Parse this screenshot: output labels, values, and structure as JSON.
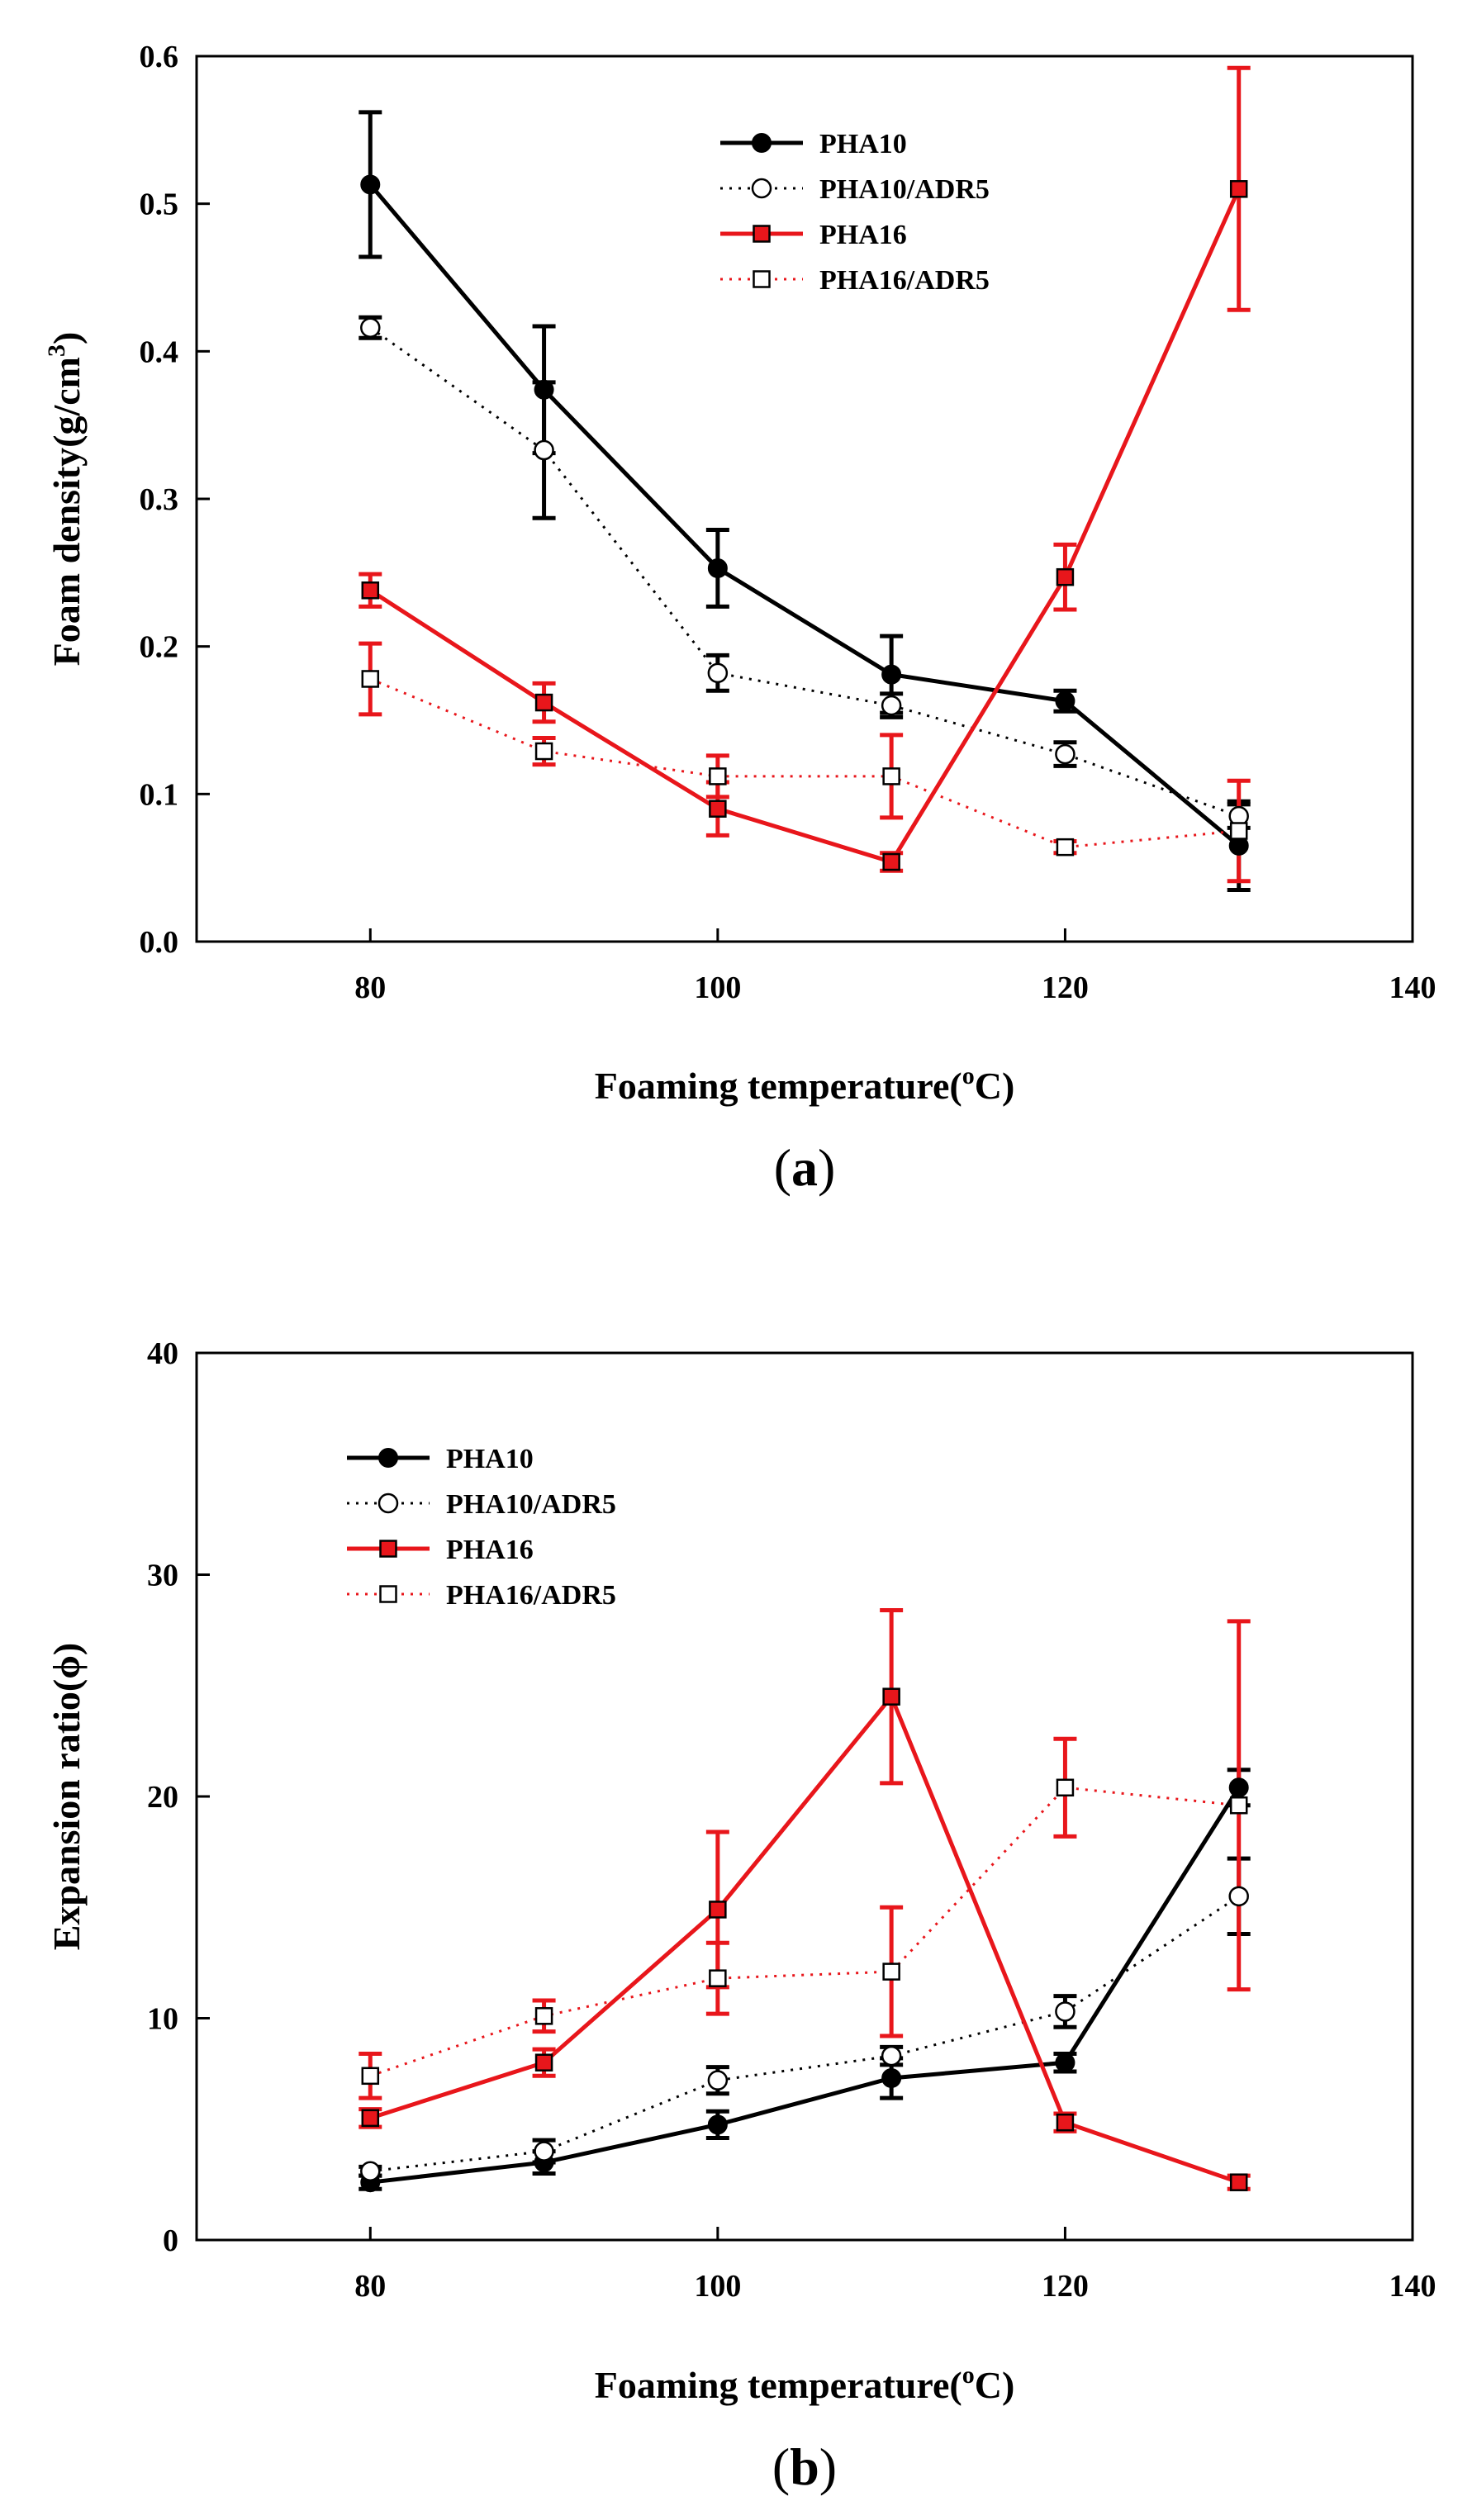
{
  "chart_data": [
    {
      "type": "line",
      "panel_label_parts": [
        "(",
        "a",
        ")"
      ],
      "xlabel_parts": [
        "Foaming temperature(",
        "o",
        "C)"
      ],
      "ylabel_parts": [
        "Foam density(g/cm",
        "3",
        ")"
      ],
      "xlim": [
        70,
        140
      ],
      "ylim": [
        0,
        0.6
      ],
      "x_ticks": [
        80,
        100,
        120,
        140
      ],
      "x_tick_labels": [
        "80",
        "100",
        "120",
        "140"
      ],
      "y_ticks": [
        0,
        0.1,
        0.2,
        0.3,
        0.4,
        0.5,
        0.6
      ],
      "y_tick_labels": [
        "0.0",
        "0.1",
        "0.2",
        "0.3",
        "0.4",
        "0.5",
        "0.6"
      ],
      "grid": false,
      "legend_position": "top-right",
      "x": [
        80,
        90,
        100,
        110,
        120,
        130
      ],
      "series": [
        {
          "name": "PHA10",
          "color": "#000000",
          "line": "solid",
          "marker": "filled-circle",
          "values": [
            0.513,
            0.374,
            0.253,
            0.181,
            0.163,
            0.065
          ],
          "errors": [
            0.049,
            0.043,
            0.026,
            0.026,
            0.007,
            0.03
          ]
        },
        {
          "name": "PHA10/ADR5",
          "color": "#000000",
          "line": "dotted",
          "marker": "open-circle",
          "values": [
            0.416,
            0.333,
            0.182,
            0.16,
            0.127,
            0.085
          ],
          "errors": [
            0.007,
            0.046,
            0.012,
            0.008,
            0.008,
            0.008
          ]
        },
        {
          "name": "PHA16",
          "color": "#e8161b",
          "line": "solid",
          "marker": "filled-square",
          "values": [
            0.238,
            0.162,
            0.09,
            0.054,
            0.247,
            0.51
          ],
          "errors": [
            0.011,
            0.013,
            0.018,
            0.006,
            0.022,
            0.082
          ]
        },
        {
          "name": "PHA16/ADR5",
          "color": "#e8161b",
          "line": "dotted",
          "marker": "open-square",
          "values": [
            0.178,
            0.129,
            0.112,
            0.112,
            0.064,
            0.075
          ],
          "errors": [
            0.024,
            0.009,
            0.014,
            0.028,
            0.004,
            0.034
          ]
        }
      ]
    },
    {
      "type": "line",
      "panel_label_parts": [
        "(",
        "b",
        ")"
      ],
      "xlabel_parts": [
        "Foaming temperature(",
        "o",
        "C)"
      ],
      "ylabel_parts": [
        "Expansion ratio(",
        "ϕ",
        ")"
      ],
      "xlim": [
        70,
        140
      ],
      "ylim": [
        0,
        40
      ],
      "x_ticks": [
        80,
        100,
        120,
        140
      ],
      "x_tick_labels": [
        "80",
        "100",
        "120",
        "140"
      ],
      "y_ticks": [
        0,
        10,
        20,
        30,
        40
      ],
      "y_tick_labels": [
        "0",
        "10",
        "20",
        "30",
        "40"
      ],
      "grid": false,
      "legend_position": "top-left",
      "x": [
        80,
        90,
        100,
        110,
        120,
        130
      ],
      "series": [
        {
          "name": "PHA10",
          "color": "#000000",
          "line": "solid",
          "marker": "filled-circle",
          "values": [
            2.6,
            3.5,
            5.2,
            7.3,
            8.0,
            20.4
          ],
          "errors": [
            0.3,
            0.5,
            0.6,
            0.9,
            0.4,
            0.8
          ]
        },
        {
          "name": "PHA10/ADR5",
          "color": "#000000",
          "line": "dotted",
          "marker": "open-circle",
          "values": [
            3.1,
            4.0,
            7.2,
            8.3,
            10.3,
            15.5
          ],
          "errors": [
            0.2,
            0.5,
            0.6,
            0.4,
            0.7,
            1.7
          ]
        },
        {
          "name": "PHA16",
          "color": "#e8161b",
          "line": "solid",
          "marker": "filled-square",
          "values": [
            5.5,
            8.0,
            14.9,
            24.5,
            5.3,
            2.6
          ],
          "errors": [
            0.4,
            0.6,
            3.5,
            3.9,
            0.4,
            0.3
          ]
        },
        {
          "name": "PHA16/ADR5",
          "color": "#e8161b",
          "line": "dotted",
          "marker": "open-square",
          "values": [
            7.4,
            10.1,
            11.8,
            12.1,
            20.4,
            19.6
          ],
          "errors": [
            1.0,
            0.7,
            1.6,
            2.9,
            2.2,
            8.3
          ]
        }
      ]
    }
  ]
}
